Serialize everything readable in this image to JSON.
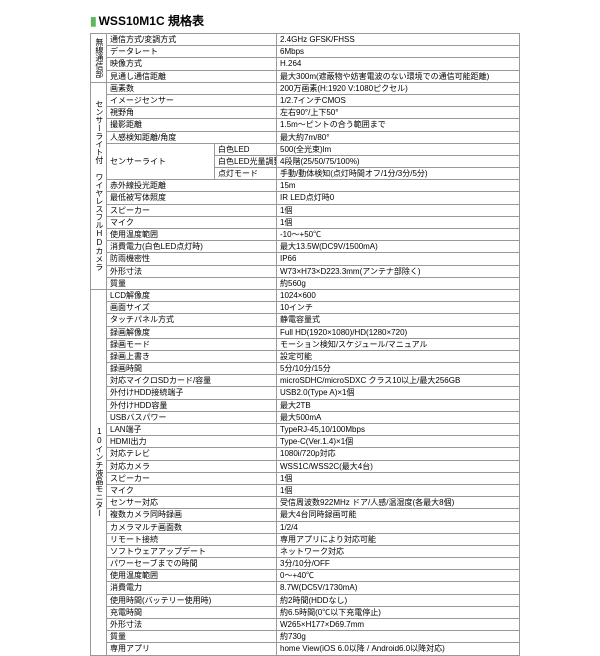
{
  "title": "WSS10M1C 規格表",
  "sections": [
    {
      "name": "無線通信部",
      "rows": [
        {
          "label": "通信方式/変調方式",
          "value": "2.4GHz GFSK/FHSS"
        },
        {
          "label": "データレート",
          "value": "6Mbps"
        },
        {
          "label": "映像方式",
          "value": "H.264"
        },
        {
          "label": "見通し通信距離",
          "value": "最大300m(遮蔽物や妨害電波のない環境での通信可能距離)"
        }
      ]
    },
    {
      "name": "センサーライト付 ワイヤレスフルHDカメラ",
      "rows": [
        {
          "label": "画素数",
          "value": "200万画素(H:1920 V:1080ピクセル)"
        },
        {
          "label": "イメージセンサー",
          "value": "1/2.7インチCMOS"
        },
        {
          "label": "視野角",
          "value": "左右90°/上下50°"
        },
        {
          "label": "撮影距離",
          "value": "1.5m～ピントの合う範囲まで"
        },
        {
          "label": "人感検知距離/角度",
          "value": "最大約7m/80°"
        },
        {
          "label": "センサーライト",
          "sub": "白色LED",
          "value": "500(全光束)lm"
        },
        {
          "label": "",
          "sub": "白色LED光量調整",
          "value": "4段階(25/50/75/100%)"
        },
        {
          "label": "",
          "sub": "点灯モード",
          "value": "手動/動体検知(点灯時間オフ/1分/3分/5分)"
        },
        {
          "label": "赤外線投光距離",
          "value": "15m"
        },
        {
          "label": "最低被写体照度",
          "value": "IR LED点灯時0"
        },
        {
          "label": "スピーカー",
          "value": "1個"
        },
        {
          "label": "マイク",
          "value": "1個"
        },
        {
          "label": "使用温度範囲",
          "value": "-10～+50℃"
        },
        {
          "label": "消費電力(白色LED点灯時)",
          "value": "最大13.5W(DC9V/1500mA)"
        },
        {
          "label": "防雨機密性",
          "value": "IP66"
        },
        {
          "label": "外形寸法",
          "value": "W73×H73×D223.3mm(アンテナ部除く)"
        },
        {
          "label": "質量",
          "value": "約560g"
        }
      ]
    },
    {
      "name": "10インチ液晶モニター",
      "rows": [
        {
          "label": "LCD解像度",
          "value": "1024×600"
        },
        {
          "label": "画面サイズ",
          "value": "10インチ"
        },
        {
          "label": "タッチパネル方式",
          "value": "静電容量式"
        },
        {
          "label": "録画解像度",
          "value": "Full HD(1920×1080)/HD(1280×720)"
        },
        {
          "label": "録画モード",
          "value": "モーション検知/スケジュール/マニュアル"
        },
        {
          "label": "録画上書き",
          "value": "設定可能"
        },
        {
          "label": "録画時間",
          "value": "5分/10分/15分"
        },
        {
          "label": "対応マイクロSDカード/容量",
          "value": "microSDHC/microSDXC クラス10以上/最大256GB"
        },
        {
          "label": "外付けHDD接続端子",
          "value": "USB2.0(Type A)×1個"
        },
        {
          "label": "外付けHDD容量",
          "value": "最大2TB"
        },
        {
          "label": "USBバスパワー",
          "value": "最大500mA"
        },
        {
          "label": "LAN端子",
          "value": "TypeRJ-45,10/100Mbps"
        },
        {
          "label": "HDMI出力",
          "value": "Type-C(Ver.1.4)×1個"
        },
        {
          "label": "対応テレビ",
          "value": "1080i/720p対応"
        },
        {
          "label": "対応カメラ",
          "value": "WSS1C/WSS2C(最大4台)"
        },
        {
          "label": "スピーカー",
          "value": "1個"
        },
        {
          "label": "マイク",
          "value": "1個"
        },
        {
          "label": "センサー対応",
          "value": "受信周波数922MHz ドア/人感/温湿度(各最大8個)"
        },
        {
          "label": "複数カメラ同時録画",
          "value": "最大4台同時録画可能"
        },
        {
          "label": "カメラマルチ画面数",
          "value": "1/2/4"
        },
        {
          "label": "リモート接続",
          "value": "専用アプリにより対応可能"
        },
        {
          "label": "ソフトウェアアップデート",
          "value": "ネットワーク対応"
        },
        {
          "label": "パワーセーブまでの時間",
          "value": "3分/10分/OFF"
        },
        {
          "label": "使用温度範囲",
          "value": "0～+40℃"
        },
        {
          "label": "消費電力",
          "value": "8.7W(DC5V/1730mA)"
        },
        {
          "label": "使用時間(バッテリー使用時)",
          "value": "約2時間(HDDなし)"
        },
        {
          "label": "充電時間",
          "value": "約6.5時間(0℃以下充電停止)"
        },
        {
          "label": "外形寸法",
          "value": "W265×H177×D69.7mm"
        },
        {
          "label": "質量",
          "value": "約730g"
        },
        {
          "label": "専用アプリ",
          "value": "home View(iOS 6.0以降 / Android6.0以降対応)"
        }
      ]
    }
  ]
}
